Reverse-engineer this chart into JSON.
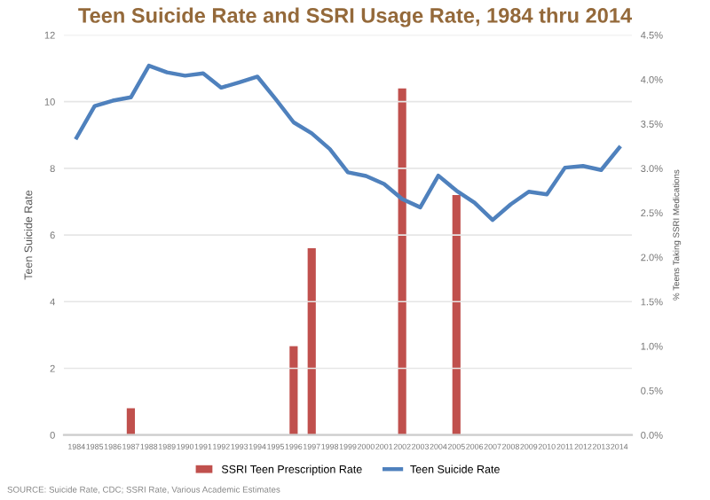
{
  "chart_data": {
    "type": "line",
    "title": "Teen Suicide Rate and SSRI Usage Rate, 1984 thru 2014",
    "categories": [
      "1984",
      "1985",
      "1986",
      "1987",
      "1988",
      "1989",
      "1990",
      "1991",
      "1992",
      "1993",
      "1994",
      "1995",
      "1996",
      "1997",
      "1998",
      "1999",
      "2000",
      "2001",
      "2002",
      "2003",
      "2004",
      "2005",
      "2006",
      "2007",
      "2008",
      "2009",
      "2010",
      "2011",
      "2012",
      "2013",
      "2014"
    ],
    "series": [
      {
        "name": "SSRI Teen Prescription Rate",
        "type": "bar",
        "axis": "y2",
        "color": "#c0504d",
        "values": [
          null,
          null,
          null,
          0.3,
          null,
          null,
          null,
          null,
          null,
          null,
          null,
          null,
          1.0,
          2.1,
          null,
          null,
          null,
          null,
          3.9,
          null,
          null,
          2.7,
          null,
          null,
          null,
          null,
          null,
          null,
          null,
          null,
          null
        ]
      },
      {
        "name": "Teen Suicide Rate",
        "color": "#4f81bd",
        "values": [
          8.92,
          9.87,
          10.03,
          10.13,
          11.08,
          10.88,
          10.78,
          10.85,
          10.42,
          10.58,
          10.75,
          10.08,
          9.38,
          9.05,
          8.58,
          7.88,
          7.77,
          7.53,
          7.08,
          6.83,
          7.78,
          7.33,
          6.97,
          6.45,
          6.92,
          7.3,
          7.22,
          8.02,
          8.07,
          7.95,
          8.62
        ]
      }
    ],
    "ylabel": "Teen Suicide Rate",
    "y2label": "% Teens Taking SSRI Medications",
    "ylim": [
      0,
      12
    ],
    "yticks": [
      0,
      2,
      4,
      6,
      8,
      10,
      12
    ],
    "y2lim": [
      0,
      4.5
    ],
    "y2ticks": [
      {
        "value": 0,
        "label": "0.0%"
      },
      {
        "value": 0.5,
        "label": "0.5%"
      },
      {
        "value": 1,
        "label": "1.0%"
      },
      {
        "value": 1.5,
        "label": "1.5%"
      },
      {
        "value": 2,
        "label": "2.0%"
      },
      {
        "value": 2.5,
        "label": "2.5%"
      },
      {
        "value": 3,
        "label": "3.0%"
      },
      {
        "value": 3.5,
        "label": "3.5%"
      },
      {
        "value": 4,
        "label": "4.0%"
      },
      {
        "value": 4.5,
        "label": "4.5%"
      }
    ],
    "grid": "y",
    "legend": "bottom",
    "marker": "none",
    "annotations": [
      "SOURCE: Suicide Rate, CDC; SSRI Rate, Various Academic Estimates"
    ]
  }
}
